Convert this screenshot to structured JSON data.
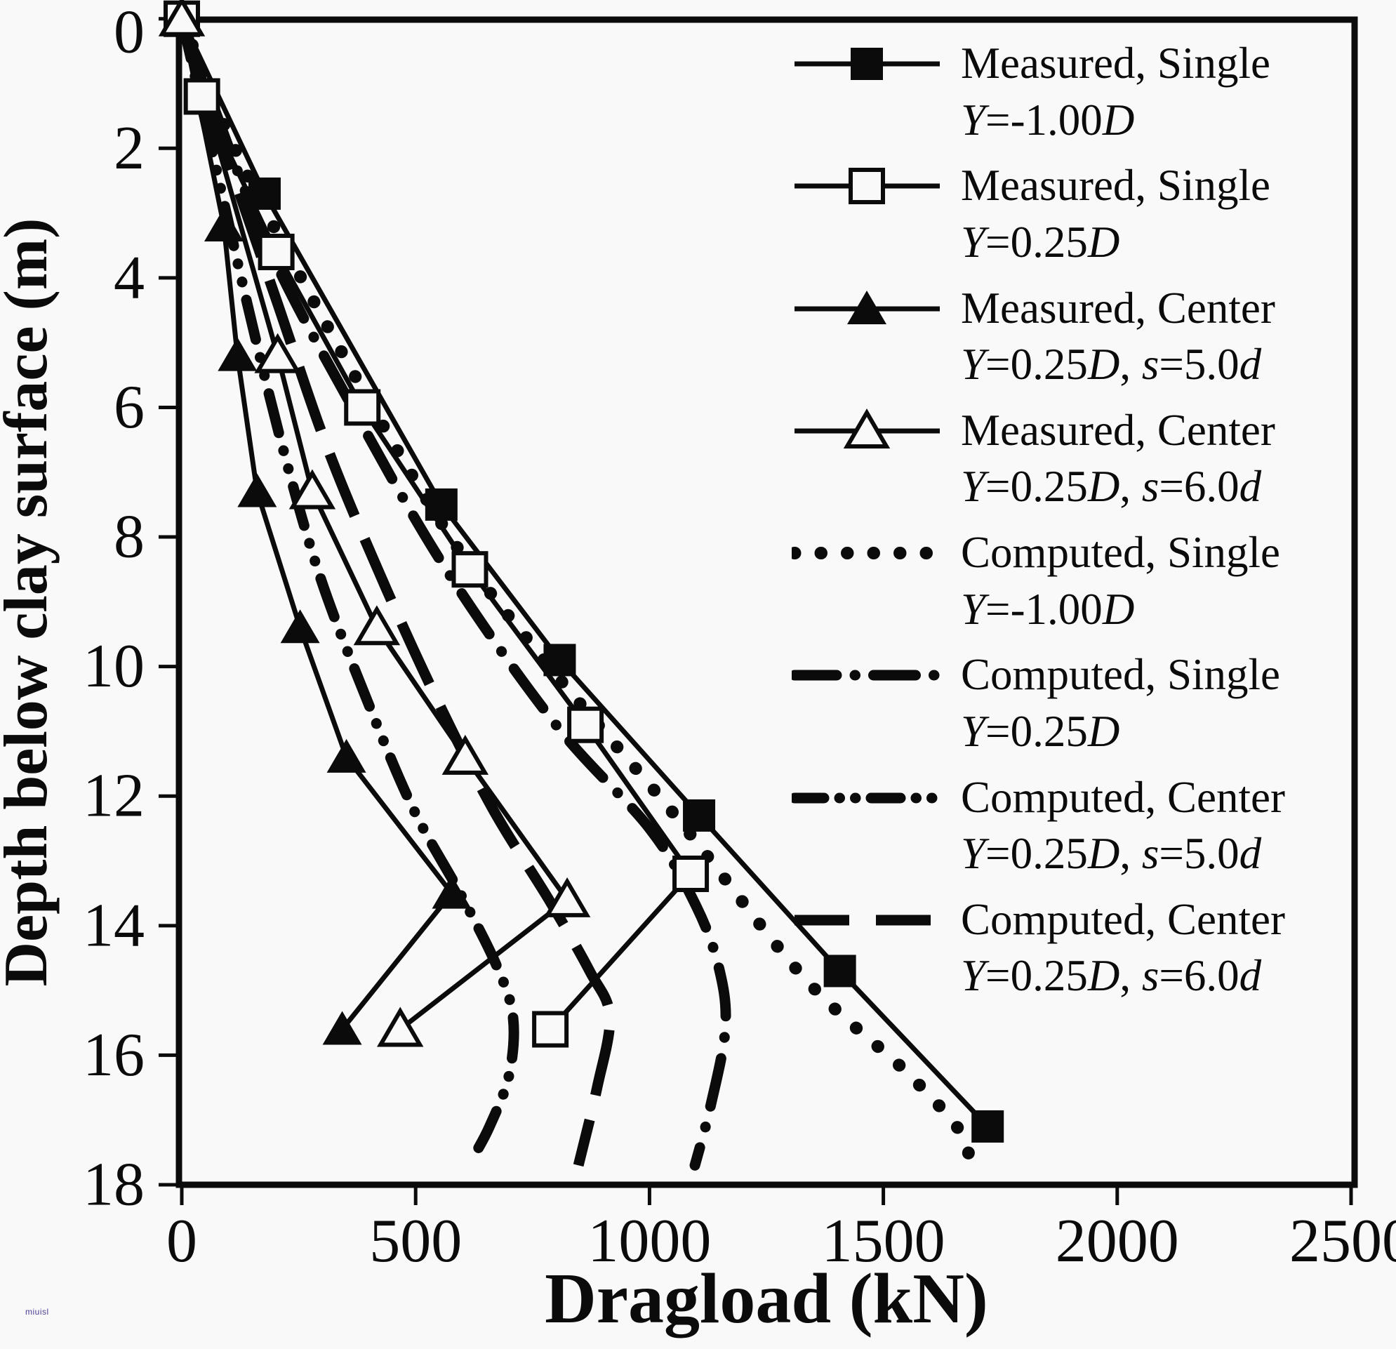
{
  "watermark": "miuisl",
  "colors": {
    "ink": "#0b0b0b",
    "background": "#f9f9f9",
    "watermark": "#4b3d96"
  },
  "chart_data": {
    "type": "line",
    "title": "",
    "xlabel": "Dragload (kN)",
    "ylabel": "Depth below clay surface (m)",
    "xlim": [
      0,
      2500
    ],
    "ylim": [
      0,
      18
    ],
    "y_inverted": true,
    "grid": false,
    "legend_position": "upper-right-inside",
    "x_ticks": [
      0,
      500,
      1000,
      1500,
      2000,
      2500
    ],
    "y_ticks": [
      0,
      2,
      4,
      6,
      8,
      10,
      12,
      14,
      16,
      18
    ],
    "series": [
      {
        "id": "measured-single-ym100",
        "name": "Measured, Single Y=-1.00D",
        "legend_line1": "Measured, Single",
        "legend_line2_parts": [
          [
            "Y",
            1
          ],
          [
            "=-1.00",
            0
          ],
          [
            "D",
            1
          ]
        ],
        "group": "measured",
        "marker": "square-filled",
        "line_style": "solid",
        "points_load_kN_depth_m": [
          [
            0,
            0
          ],
          [
            177,
            2.7
          ],
          [
            555,
            7.5
          ],
          [
            808,
            9.9
          ],
          [
            1106,
            12.3
          ],
          [
            1407,
            14.7
          ],
          [
            1723,
            17.1
          ]
        ]
      },
      {
        "id": "measured-single-y025",
        "name": "Measured, Single Y=0.25D",
        "legend_line1": "Measured, Single",
        "legend_line2_parts": [
          [
            "Y",
            1
          ],
          [
            "=0.25",
            0
          ],
          [
            "D",
            1
          ]
        ],
        "group": "measured",
        "marker": "square-open",
        "line_style": "solid",
        "points_load_kN_depth_m": [
          [
            0,
            0
          ],
          [
            43,
            1.2
          ],
          [
            202,
            3.6
          ],
          [
            386,
            6.0
          ],
          [
            616,
            8.5
          ],
          [
            863,
            10.9
          ],
          [
            1088,
            13.2
          ],
          [
            788,
            15.6
          ]
        ]
      },
      {
        "id": "measured-center-s5",
        "name": "Measured, Center Y=0.25D, s=5.0d",
        "legend_line1": "Measured, Center",
        "legend_line2_parts": [
          [
            "Y",
            1
          ],
          [
            "=0.25",
            0
          ],
          [
            "D",
            1
          ],
          [
            ", ",
            0
          ],
          [
            "s",
            1
          ],
          [
            "=5.0",
            0
          ],
          [
            "d",
            1
          ]
        ],
        "group": "measured",
        "marker": "triangle-filled",
        "line_style": "solid",
        "points_load_kN_depth_m": [
          [
            0,
            0
          ],
          [
            90,
            3.2
          ],
          [
            119,
            5.2
          ],
          [
            161,
            7.3
          ],
          [
            253,
            9.4
          ],
          [
            352,
            11.4
          ],
          [
            577,
            13.5
          ],
          [
            343,
            15.6
          ]
        ]
      },
      {
        "id": "measured-center-s6",
        "name": "Measured, Center Y=0.25D, s=6.0d",
        "legend_line1": "Measured, Center",
        "legend_line2_parts": [
          [
            "Y",
            1
          ],
          [
            "=0.25",
            0
          ],
          [
            "D",
            1
          ],
          [
            ", ",
            0
          ],
          [
            "s",
            1
          ],
          [
            "=6.0",
            0
          ],
          [
            "d",
            1
          ]
        ],
        "group": "measured",
        "marker": "triangle-open",
        "line_style": "solid",
        "points_load_kN_depth_m": [
          [
            0,
            0
          ],
          [
            205,
            5.2
          ],
          [
            279,
            7.3
          ],
          [
            417,
            9.4
          ],
          [
            606,
            11.4
          ],
          [
            824,
            13.6
          ],
          [
            467,
            15.6
          ]
        ]
      },
      {
        "id": "computed-single-ym100",
        "name": "Computed, Single Y=-1.00D",
        "legend_line1": "Computed, Single",
        "legend_line2_parts": [
          [
            "Y",
            1
          ],
          [
            "=-1.00",
            0
          ],
          [
            "D",
            1
          ]
        ],
        "group": "computed",
        "marker": null,
        "line_style": "dotted",
        "points_load_kN_depth_m": [
          [
            0,
            0
          ],
          [
            160,
            2.7
          ],
          [
            530,
            7.5
          ],
          [
            775,
            9.9
          ],
          [
            1055,
            12.3
          ],
          [
            1330,
            14.8
          ],
          [
            1555,
            16.3
          ],
          [
            1675,
            17.3
          ],
          [
            1668,
            17.8
          ]
        ]
      },
      {
        "id": "computed-single-y025",
        "name": "Computed, Single Y=0.25D",
        "legend_line1": "Computed, Single",
        "legend_line2_parts": [
          [
            "Y",
            1
          ],
          [
            "=0.25",
            0
          ],
          [
            "D",
            1
          ]
        ],
        "group": "computed",
        "marker": null,
        "line_style": "dashdot",
        "points_load_kN_depth_m": [
          [
            0,
            0
          ],
          [
            60,
            1.2
          ],
          [
            190,
            3.6
          ],
          [
            365,
            6.0
          ],
          [
            565,
            8.5
          ],
          [
            800,
            10.9
          ],
          [
            1000,
            12.5
          ],
          [
            1100,
            13.7
          ],
          [
            1150,
            14.7
          ],
          [
            1162,
            15.6
          ],
          [
            1130,
            16.8
          ],
          [
            1097,
            17.7
          ]
        ]
      },
      {
        "id": "computed-center-s5",
        "name": "Computed, Center Y=0.25D, s=5.0d",
        "legend_line1": "Computed, Center",
        "legend_line2_parts": [
          [
            "Y",
            1
          ],
          [
            "=0.25",
            0
          ],
          [
            "D",
            1
          ],
          [
            ", ",
            0
          ],
          [
            "s",
            1
          ],
          [
            "=5.0",
            0
          ],
          [
            "d",
            1
          ]
        ],
        "group": "computed",
        "marker": null,
        "line_style": "dashdotdot",
        "points_load_kN_depth_m": [
          [
            0,
            0
          ],
          [
            70,
            2.2
          ],
          [
            140,
            4.4
          ],
          [
            215,
            6.6
          ],
          [
            295,
            8.6
          ],
          [
            395,
            10.5
          ],
          [
            495,
            12.2
          ],
          [
            595,
            13.5
          ],
          [
            672,
            14.6
          ],
          [
            708,
            15.4
          ],
          [
            700,
            16.3
          ],
          [
            658,
            17.1
          ],
          [
            621,
            17.6
          ]
        ]
      },
      {
        "id": "computed-center-s6",
        "name": "Computed, Center Y=0.25D, s=6.0d",
        "legend_line1": "Computed, Center",
        "legend_line2_parts": [
          [
            "Y",
            1
          ],
          [
            "=0.25",
            0
          ],
          [
            "D",
            1
          ],
          [
            ", ",
            0
          ],
          [
            "s",
            1
          ],
          [
            "=6.0",
            0
          ],
          [
            "d",
            1
          ]
        ],
        "group": "computed",
        "marker": null,
        "line_style": "longdash",
        "points_load_kN_depth_m": [
          [
            0,
            0
          ],
          [
            100,
            2.2
          ],
          [
            205,
            4.4
          ],
          [
            310,
            6.6
          ],
          [
            425,
            8.6
          ],
          [
            545,
            10.5
          ],
          [
            665,
            12.2
          ],
          [
            785,
            13.6
          ],
          [
            872,
            14.7
          ],
          [
            915,
            15.4
          ],
          [
            888,
            16.5
          ],
          [
            848,
            17.7
          ]
        ]
      }
    ]
  }
}
